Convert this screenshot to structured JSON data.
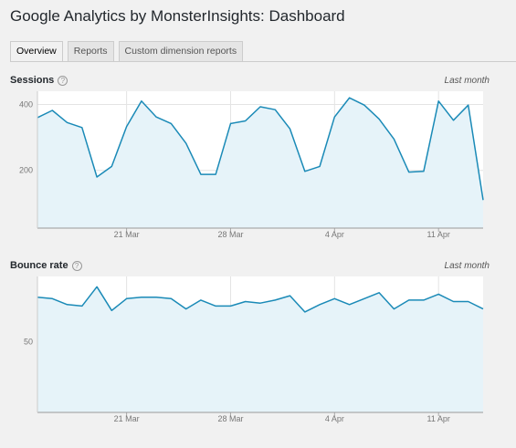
{
  "page": {
    "title": "Google Analytics by MonsterInsights: Dashboard"
  },
  "tabs": [
    {
      "label": "Overview",
      "active": true
    },
    {
      "label": "Reports",
      "active": false
    },
    {
      "label": "Custom dimension reports",
      "active": false
    }
  ],
  "colors": {
    "line": "#1a8ab7",
    "fill": "#e6f3f9",
    "grid": "#e4e4e4"
  },
  "chart_data": [
    {
      "type": "area",
      "title": "Sessions",
      "period": "Last month",
      "help_icon": "help-icon",
      "xticks": [
        "21 Mar",
        "28 Mar",
        "4 Apr",
        "11 Apr"
      ],
      "xtick_day_index": [
        6,
        13,
        20,
        27
      ],
      "yticks": [
        400,
        200
      ],
      "ylim": [
        25,
        440
      ],
      "values": [
        360,
        382,
        345,
        330,
        180,
        212,
        333,
        410,
        362,
        342,
        282,
        188,
        188,
        342,
        350,
        393,
        384,
        326,
        197,
        212,
        362,
        420,
        398,
        356,
        295,
        195,
        197,
        410,
        352,
        398,
        110
      ]
    },
    {
      "type": "area",
      "title": "Bounce rate",
      "period": "Last month",
      "help_icon": "help-icon",
      "xticks": [
        "21 Mar",
        "28 Mar",
        "4 Apr",
        "11 Apr"
      ],
      "xtick_day_index": [
        6,
        13,
        20,
        27
      ],
      "yticks": [
        50
      ],
      "ylim": [
        26,
        72
      ],
      "values": [
        65,
        64.5,
        62.5,
        62,
        68.5,
        60.5,
        64.5,
        65,
        65,
        64.5,
        61,
        64,
        62,
        62,
        63.5,
        63,
        64,
        65.5,
        60,
        62.5,
        64.5,
        62.5,
        64.5,
        66.5,
        61,
        64,
        64,
        66,
        63.5,
        63.5,
        61
      ]
    }
  ]
}
